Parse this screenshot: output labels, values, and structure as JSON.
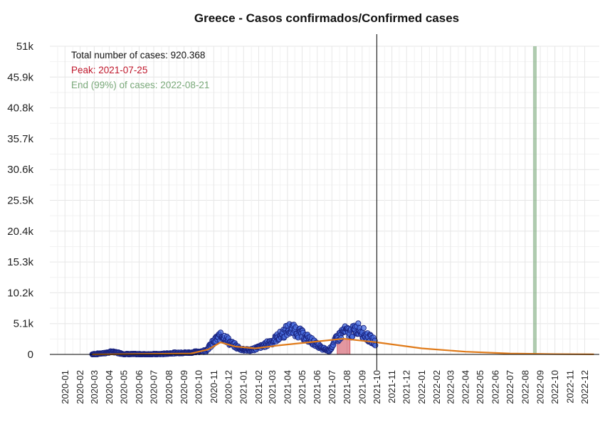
{
  "chart_data": {
    "type": "scatter",
    "title": "Greece - Casos confirmados/Confirmed cases",
    "xlabel": "",
    "ylabel": "",
    "x_range": [
      "2019-12-01",
      "2022-12-31"
    ],
    "ylim": [
      0,
      51000
    ],
    "y_ticks": [
      0,
      5100,
      10200,
      15300,
      20400,
      25500,
      30600,
      35700,
      40800,
      45900,
      51000
    ],
    "y_tick_labels": [
      "0",
      "5.1k",
      "10.2k",
      "15.3k",
      "20.4k",
      "25.5k",
      "30.6k",
      "35.7k",
      "40.8k",
      "45.9k",
      "51k"
    ],
    "x_tick_labels": [
      "2020-01",
      "2020-02",
      "2020-03",
      "2020-04",
      "2020-05",
      "2020-06",
      "2020-07",
      "2020-08",
      "2020-09",
      "2020-10",
      "2020-11",
      "2020-12",
      "2021-01",
      "2021-02",
      "2021-03",
      "2021-04",
      "2021-05",
      "2021-06",
      "2021-07",
      "2021-08",
      "2021-09",
      "2021-10",
      "2021-11",
      "2021-12",
      "2022-01",
      "2022-02",
      "2022-03",
      "2022-04",
      "2022-05",
      "2022-06",
      "2022-07",
      "2022-08",
      "2022-09",
      "2022-10",
      "2022-11",
      "2022-12"
    ],
    "grid": true,
    "annotations": {
      "total": "Total number of cases: 920.368",
      "peak": "Peak: 2021-07-25",
      "end": "End (99%) of cases: 2022-08-21"
    },
    "colors": {
      "points_fill": "#4a6fe0",
      "points_stroke": "#1a237e",
      "fit_line": "#e07b1a",
      "peak": "#c0182c",
      "end": "#7aa97a",
      "today_line": "#000000"
    },
    "today_date": "2021-10-01",
    "peak_date": "2021-07-25",
    "end_date": "2022-08-21",
    "observed_cases": [
      {
        "date": "2020-02-26",
        "cases": 0
      },
      {
        "date": "2020-03-20",
        "cases": 200
      },
      {
        "date": "2020-04-10",
        "cases": 450
      },
      {
        "date": "2020-05-01",
        "cases": 50
      },
      {
        "date": "2020-06-15",
        "cases": 20
      },
      {
        "date": "2020-07-15",
        "cases": 50
      },
      {
        "date": "2020-08-15",
        "cases": 250
      },
      {
        "date": "2020-09-15",
        "cases": 300
      },
      {
        "date": "2020-10-15",
        "cases": 600
      },
      {
        "date": "2020-11-10",
        "cases": 2800
      },
      {
        "date": "2020-11-20",
        "cases": 3100
      },
      {
        "date": "2020-12-05",
        "cases": 1900
      },
      {
        "date": "2020-12-25",
        "cases": 900
      },
      {
        "date": "2021-01-15",
        "cases": 700
      },
      {
        "date": "2021-02-10",
        "cases": 1400
      },
      {
        "date": "2021-03-01",
        "cases": 2200
      },
      {
        "date": "2021-03-20",
        "cases": 3300
      },
      {
        "date": "2021-04-05",
        "cases": 4200
      },
      {
        "date": "2021-04-20",
        "cases": 3900
      },
      {
        "date": "2021-05-05",
        "cases": 3000
      },
      {
        "date": "2021-05-25",
        "cases": 2000
      },
      {
        "date": "2021-06-10",
        "cases": 1000
      },
      {
        "date": "2021-06-25",
        "cases": 600
      },
      {
        "date": "2021-07-10",
        "cases": 2500
      },
      {
        "date": "2021-07-25",
        "cases": 3800
      },
      {
        "date": "2021-08-10",
        "cases": 3600
      },
      {
        "date": "2021-08-25",
        "cases": 4400
      },
      {
        "date": "2021-09-10",
        "cases": 3000
      },
      {
        "date": "2021-09-28",
        "cases": 2000
      }
    ],
    "fitted_trend": [
      {
        "date": "2020-02-26",
        "cases": 0
      },
      {
        "date": "2020-09-15",
        "cases": 150
      },
      {
        "date": "2020-10-20",
        "cases": 800
      },
      {
        "date": "2020-11-15",
        "cases": 2000
      },
      {
        "date": "2020-12-15",
        "cases": 1300
      },
      {
        "date": "2021-01-25",
        "cases": 1000
      },
      {
        "date": "2021-03-15",
        "cases": 1500
      },
      {
        "date": "2021-05-15",
        "cases": 2000
      },
      {
        "date": "2021-07-25",
        "cases": 2600
      },
      {
        "date": "2021-10-01",
        "cases": 2000
      },
      {
        "date": "2022-01-01",
        "cases": 1000
      },
      {
        "date": "2022-04-01",
        "cases": 450
      },
      {
        "date": "2022-07-01",
        "cases": 150
      },
      {
        "date": "2022-10-01",
        "cases": 50
      },
      {
        "date": "2022-12-20",
        "cases": 20
      }
    ]
  }
}
